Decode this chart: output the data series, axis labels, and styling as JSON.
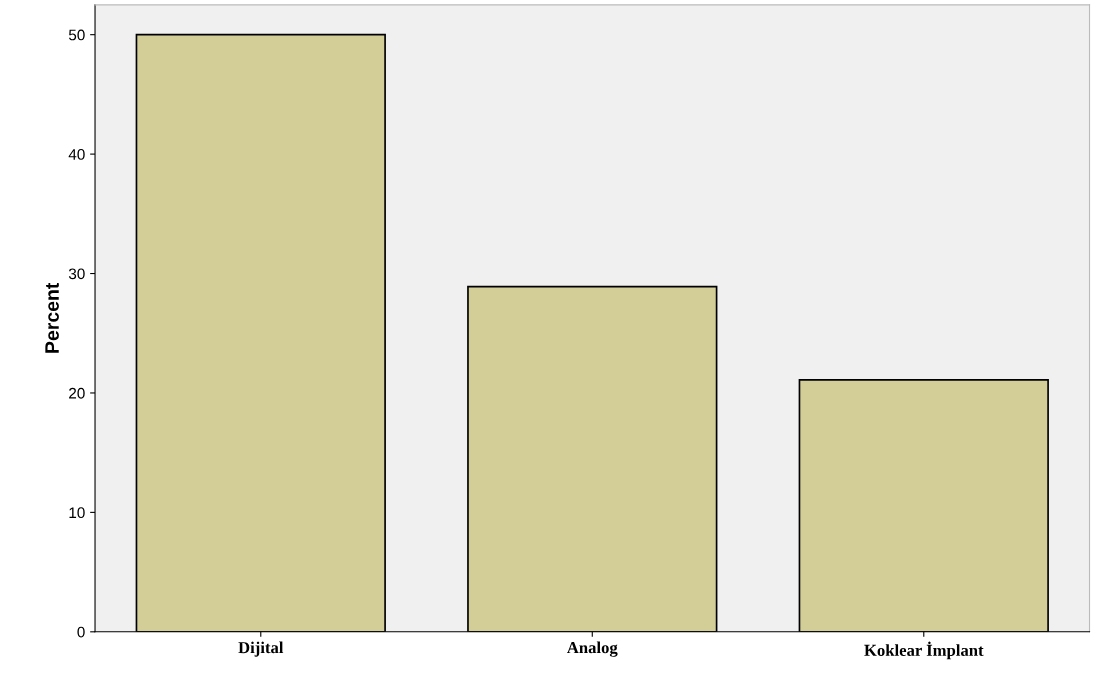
{
  "chart_data": {
    "type": "bar",
    "ylabel": "Percent",
    "categories": [
      "Dijital",
      "Analog",
      "Koklear İmplant"
    ],
    "values": [
      50,
      28.9,
      21.1
    ],
    "color": "#d3ce97",
    "ylim": [
      0,
      52.5
    ],
    "yticks": [
      0,
      10,
      20,
      30,
      40,
      50
    ],
    "grid": false,
    "legend": false
  }
}
